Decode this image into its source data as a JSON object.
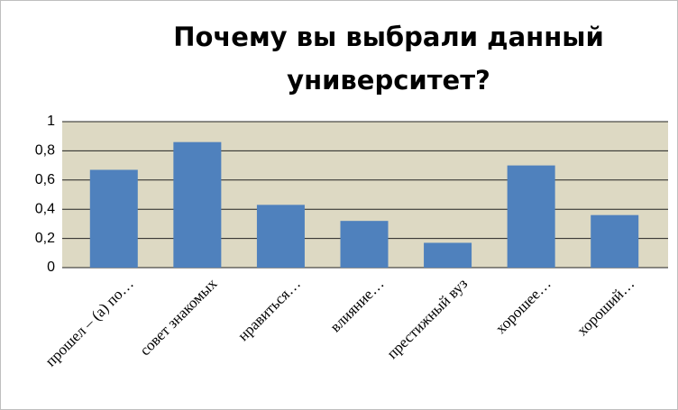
{
  "chart_data": {
    "type": "bar",
    "title": "Почему вы выбрали данный университет?",
    "categories": [
      "прошел – (а) по…",
      "совет знакомых",
      "нравиться…",
      "влияние…",
      "престижный вуз",
      "хорошее…",
      "хороший…"
    ],
    "values": [
      0.67,
      0.86,
      0.43,
      0.32,
      0.17,
      0.7,
      0.36
    ],
    "color": "#4f81bd",
    "ylim": [
      0,
      1
    ],
    "yticks": [
      0,
      {
        "value": 0.2,
        "label": "0,2"
      },
      {
        "value": 0.4,
        "label": "0,4"
      },
      {
        "value": 0.6,
        "label": "0,6"
      },
      {
        "value": 0.8,
        "label": "0,8"
      },
      1
    ],
    "grid": true
  }
}
